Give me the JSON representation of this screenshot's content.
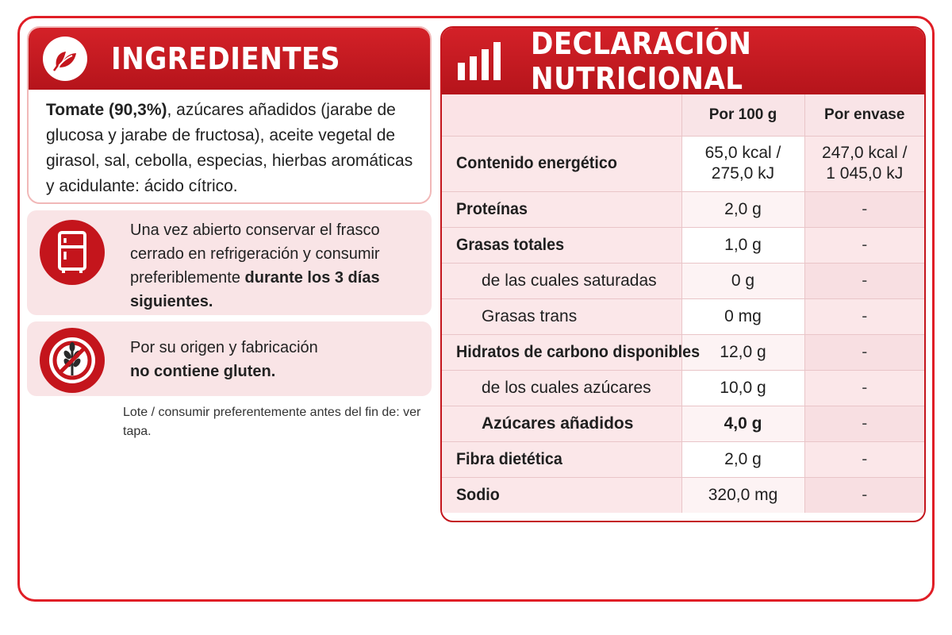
{
  "ingredients": {
    "title": "INGREDIENTES",
    "icon": "leaf-icon",
    "lead_bold": "Tomate (90,3%)",
    "text": ", azúcares añadidos (jarabe de glucosa y jarabe de fructosa), aceite vegetal de girasol, sal, cebolla, especias, hierbas aromáticas y acidulante: ácido cítrico."
  },
  "storage": {
    "icon": "fridge-icon",
    "text": "Una vez abierto conservar el frasco cerrado en refrigeración y consumir preferiblemente ",
    "bold": "durante los 3 días siguientes."
  },
  "gluten": {
    "icon": "no-gluten-icon",
    "text": "Por su origen y fabricación",
    "bold": "no contiene gluten."
  },
  "lote": "Lote / consumir preferentemente antes del fin de: ver tapa.",
  "nutrition": {
    "title": "DECLARACIÓN NUTRICIONAL",
    "icon": "bar-chart-icon",
    "col_per100": "Por 100 g",
    "col_pack": "Por envase",
    "rows": [
      {
        "label": "Contenido energético",
        "per100": "65,0 kcal / 275,0 kJ",
        "per100_a": "65,0 kcal /",
        "per100_b": "275,0 kJ",
        "pack_a": "247,0 kcal /",
        "pack_b": "1 045,0 kJ"
      },
      {
        "label": "Proteínas",
        "per100": "2,0 g",
        "pack": "-"
      },
      {
        "label": "Grasas totales",
        "per100": "1,0 g",
        "pack": "-"
      },
      {
        "label": "de las cuales saturadas",
        "per100": "0 g",
        "pack": "-"
      },
      {
        "label": "Grasas trans",
        "per100": "0 mg",
        "pack": "-"
      },
      {
        "label": "Hidratos de carbono disponibles",
        "per100": "12,0 g",
        "pack": "-"
      },
      {
        "label": "de los cuales azúcares",
        "per100": "10,0 g",
        "pack": "-"
      },
      {
        "label": "Azúcares añadidos",
        "per100": "4,0 g",
        "pack": "-"
      },
      {
        "label": "Fibra dietética",
        "per100": "2,0 g",
        "pack": "-"
      },
      {
        "label": "Sodio",
        "per100": "320,0 mg",
        "pack": "-"
      }
    ]
  },
  "colors": {
    "brand_red": "#c4151c",
    "pink_bg": "#f9e4e6",
    "frame_red": "#e01e26"
  }
}
